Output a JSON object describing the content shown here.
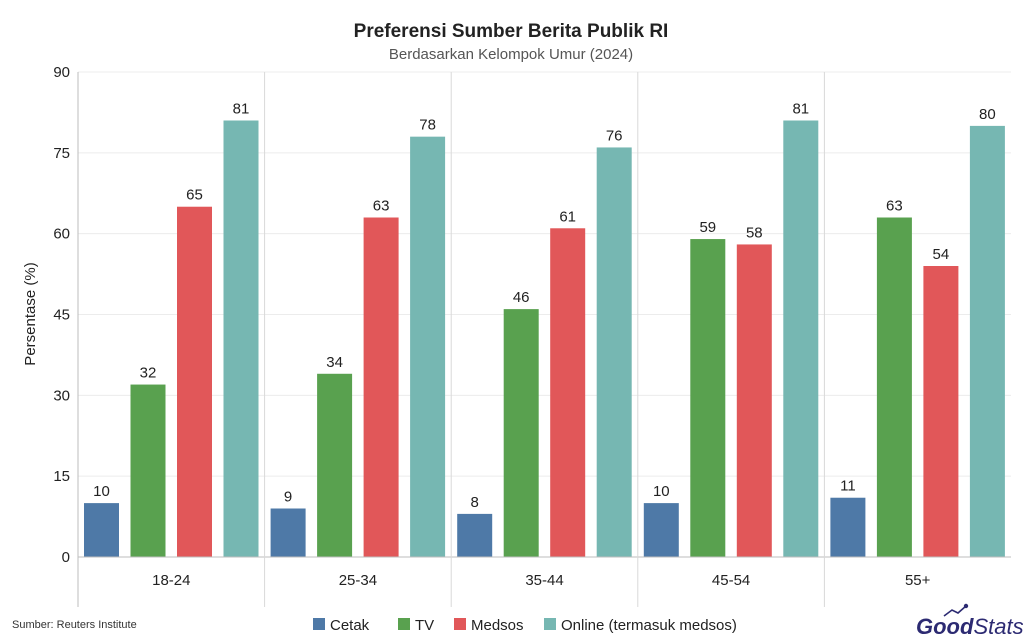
{
  "chart_data": {
    "type": "bar",
    "title": "Preferensi Sumber Berita Publik RI",
    "subtitle": "Berdasarkan Kelompok Umur (2024)",
    "ylabel": "Persentase (%)",
    "xlabel": "",
    "ylim": [
      0,
      90
    ],
    "yticks": [
      0,
      15,
      30,
      45,
      60,
      75,
      90
    ],
    "grid": true,
    "legend_position": "bottom",
    "categories": [
      "18-24",
      "25-34",
      "35-44",
      "45-54",
      "55+"
    ],
    "series": [
      {
        "name": "Cetak",
        "color": "#4e79a7",
        "values": [
          10,
          9,
          8,
          10,
          11
        ]
      },
      {
        "name": "TV",
        "color": "#59a14f",
        "values": [
          32,
          34,
          46,
          59,
          63
        ]
      },
      {
        "name": "Medsos",
        "color": "#e15759",
        "values": [
          65,
          63,
          61,
          58,
          54
        ]
      },
      {
        "name": "Online (termasuk medsos)",
        "color": "#76b7b2",
        "values": [
          81,
          78,
          76,
          81,
          80
        ]
      }
    ]
  },
  "source": "Sumber: Reuters Institute",
  "logo": {
    "part1": "Good",
    "part2": "Stats"
  }
}
